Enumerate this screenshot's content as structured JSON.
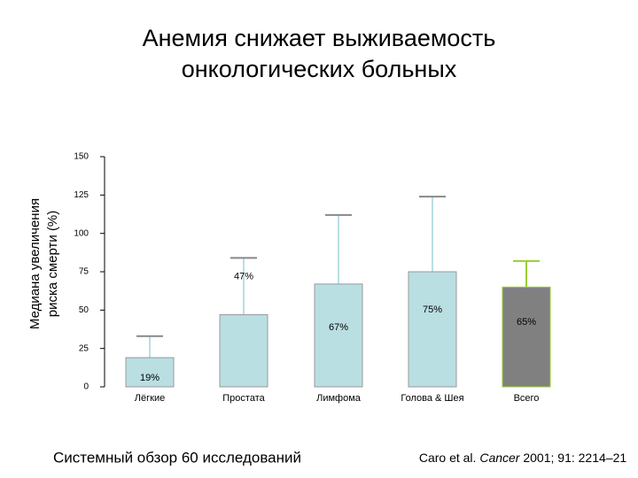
{
  "chart_data": {
    "type": "bar",
    "title": [
      "Анемия снижает выживаемость",
      "онкологических больных"
    ],
    "ylabel": [
      "Медиана увеличения",
      "риска смерти (%)"
    ],
    "categories": [
      "Лёгкие",
      "Простата",
      "Лимфома",
      "Голова & Шея",
      "Всего"
    ],
    "values": [
      19,
      47,
      67,
      75,
      65
    ],
    "value_labels": [
      "19%",
      "47%",
      "67%",
      "75%",
      "65%"
    ],
    "error_upper": [
      33,
      84,
      112,
      124,
      82
    ],
    "colors": [
      "#b9dfe3",
      "#b9dfe3",
      "#b9dfe3",
      "#b9dfe3",
      "#808080"
    ],
    "edge_colors": [
      "#999999",
      "#999999",
      "#999999",
      "#999999",
      "#9acd32"
    ],
    "ylim": [
      0,
      150
    ],
    "yticks": [
      0,
      25,
      50,
      75,
      100,
      125,
      150
    ],
    "footnote_left": "Системный обзор 60 исследований",
    "footnote_right": [
      "Caro et al. ",
      "Cancer",
      " 2001; 91: 2214–21"
    ]
  }
}
